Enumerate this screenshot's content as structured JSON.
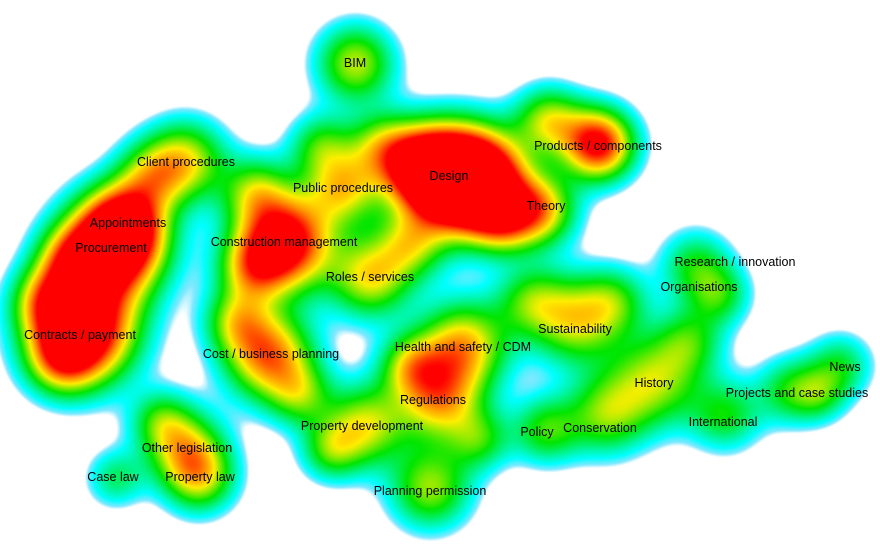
{
  "colors": {
    "edge": "#7fe8ff",
    "cyan": "#00ffff",
    "green": "#00e600",
    "yellow": "#ffee00",
    "orange": "#ff8800",
    "red": "#ff0000"
  },
  "topics": [
    {
      "id": "bim",
      "label": "BIM",
      "intensity": 0.35
    },
    {
      "id": "client-procedures",
      "label": "Client procedures",
      "intensity": 0.55
    },
    {
      "id": "public-procedures",
      "label": "Public procedures",
      "intensity": 0.6
    },
    {
      "id": "design",
      "label": "Design",
      "intensity": 1.0
    },
    {
      "id": "products-components",
      "label": "Products / components",
      "intensity": 0.85
    },
    {
      "id": "theory",
      "label": "Theory",
      "intensity": 0.6
    },
    {
      "id": "appointments",
      "label": "Appointments",
      "intensity": 0.8
    },
    {
      "id": "procurement",
      "label": "Procurement",
      "intensity": 0.95
    },
    {
      "id": "construction-management",
      "label": "Construction management",
      "intensity": 0.95
    },
    {
      "id": "roles-services",
      "label": "Roles / services",
      "intensity": 0.65
    },
    {
      "id": "contracts-payment",
      "label": "Contracts / payment",
      "intensity": 1.0
    },
    {
      "id": "cost-business-planning",
      "label": "Cost / business planning",
      "intensity": 0.8
    },
    {
      "id": "health-and-safety-cdm",
      "label": "Health and safety / CDM",
      "intensity": 0.7
    },
    {
      "id": "regulations",
      "label": "Regulations",
      "intensity": 0.7
    },
    {
      "id": "sustainability",
      "label": "Sustainability",
      "intensity": 0.6
    },
    {
      "id": "research-innovation",
      "label": "Research / innovation",
      "intensity": 0.4
    },
    {
      "id": "organisations",
      "label": "Organisations",
      "intensity": 0.45
    },
    {
      "id": "history",
      "label": "History",
      "intensity": 0.55
    },
    {
      "id": "news",
      "label": "News",
      "intensity": 0.4
    },
    {
      "id": "projects-and-case-studies",
      "label": "Projects and case studies",
      "intensity": 0.45
    },
    {
      "id": "international",
      "label": "International",
      "intensity": 0.45
    },
    {
      "id": "policy",
      "label": "Policy",
      "intensity": 0.5
    },
    {
      "id": "conservation",
      "label": "Conservation",
      "intensity": 0.5
    },
    {
      "id": "property-development",
      "label": "Property development",
      "intensity": 0.6
    },
    {
      "id": "planning-permission",
      "label": "Planning permission",
      "intensity": 0.55
    },
    {
      "id": "other-legislation",
      "label": "Other legislation",
      "intensity": 0.55
    },
    {
      "id": "case-law",
      "label": "Case law",
      "intensity": 0.35
    },
    {
      "id": "property-law",
      "label": "Property law",
      "intensity": 0.55
    }
  ]
}
